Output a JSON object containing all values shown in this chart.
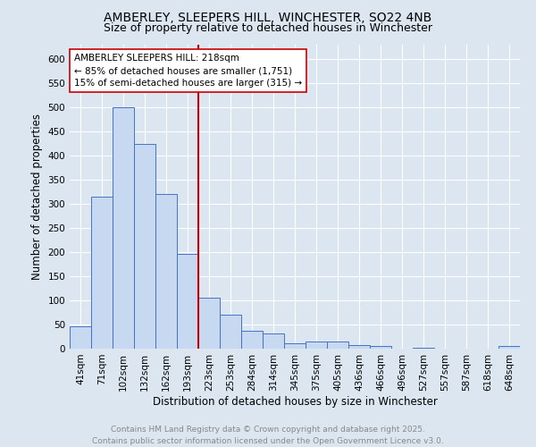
{
  "title_line1": "AMBERLEY, SLEEPERS HILL, WINCHESTER, SO22 4NB",
  "title_line2": "Size of property relative to detached houses in Winchester",
  "xlabel": "Distribution of detached houses by size in Winchester",
  "ylabel": "Number of detached properties",
  "categories": [
    "41sqm",
    "71sqm",
    "102sqm",
    "132sqm",
    "162sqm",
    "193sqm",
    "223sqm",
    "253sqm",
    "284sqm",
    "314sqm",
    "345sqm",
    "375sqm",
    "405sqm",
    "436sqm",
    "466sqm",
    "496sqm",
    "527sqm",
    "557sqm",
    "587sqm",
    "618sqm",
    "648sqm"
  ],
  "values": [
    46,
    315,
    500,
    425,
    320,
    196,
    105,
    70,
    37,
    31,
    12,
    15,
    15,
    8,
    5,
    0,
    1,
    0,
    0,
    0,
    5
  ],
  "bar_color": "#c6d9f0",
  "bar_edge_color": "#4472c4",
  "vline_color": "#cc0000",
  "annotation_title": "AMBERLEY SLEEPERS HILL: 218sqm",
  "annotation_line1": "← 85% of detached houses are smaller (1,751)",
  "annotation_line2": "15% of semi-detached houses are larger (315) →",
  "annotation_box_color": "#ffffff",
  "annotation_box_edge": "#cc0000",
  "ylim": [
    0,
    630
  ],
  "yticks": [
    0,
    50,
    100,
    150,
    200,
    250,
    300,
    350,
    400,
    450,
    500,
    550,
    600
  ],
  "background_color": "#dce6f1",
  "plot_bg_color": "#dce6f1",
  "grid_color": "#ffffff",
  "footer_line1": "Contains HM Land Registry data © Crown copyright and database right 2025.",
  "footer_line2": "Contains public sector information licensed under the Open Government Licence v3.0.",
  "title_fontsize": 10,
  "subtitle_fontsize": 9,
  "axis_label_fontsize": 8.5,
  "tick_fontsize": 7.5,
  "annotation_fontsize": 7.5,
  "footer_fontsize": 6.5
}
